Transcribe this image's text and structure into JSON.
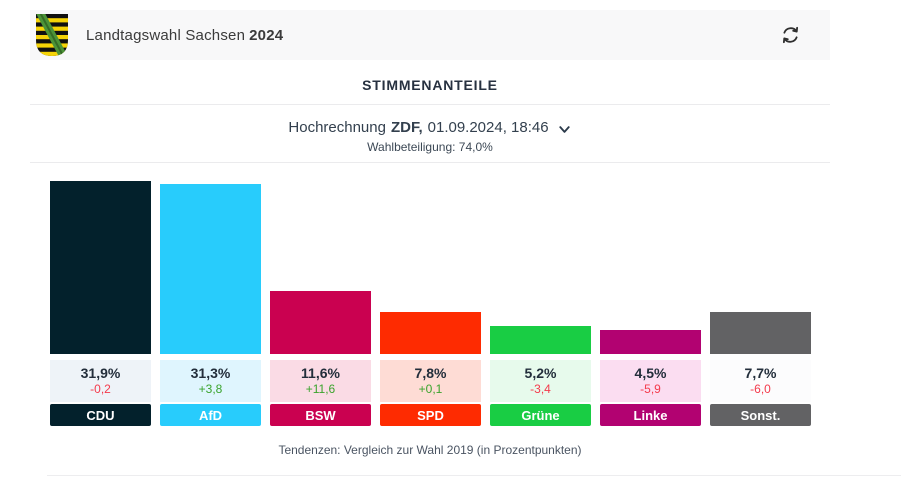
{
  "header": {
    "title_regular": "Landtagswahl Sachsen",
    "title_year": "2024"
  },
  "section": {
    "title": "STIMMENANTEILE"
  },
  "projection": {
    "prefix": "Hochrechnung",
    "source": "ZDF,",
    "datetime": "01.09.2024, 18:46",
    "turnout": "Wahlbeteiligung: 74,0%"
  },
  "chart_data": {
    "type": "bar",
    "title": "STIMMENANTEILE",
    "subtitle": "Hochrechnung ZDF, 01.09.2024, 18:46",
    "categories": [
      "CDU",
      "AfD",
      "BSW",
      "SPD",
      "Grüne",
      "Linke",
      "Sonst."
    ],
    "values": [
      31.9,
      31.3,
      11.6,
      7.8,
      5.2,
      4.5,
      7.7
    ],
    "trend_values": [
      -0.2,
      3.8,
      11.6,
      0.1,
      -3.4,
      -5.9,
      -6.0
    ],
    "ylim": [
      0,
      35
    ],
    "grid": false,
    "legend": "none",
    "footnote": "Tendenzen: Vergleich zur Wahl 2019 (in Prozentpunkten)",
    "parties": [
      {
        "name": "CDU",
        "value": 31.9,
        "value_label": "31,9%",
        "trend": "-0,2",
        "trend_direction": "down",
        "bar_color": "#03212c",
        "box_color": "#eef3f8"
      },
      {
        "name": "AfD",
        "value": 31.3,
        "value_label": "31,3%",
        "trend": "+3,8",
        "trend_direction": "up",
        "bar_color": "#28ccfc",
        "box_color": "#dff5fe"
      },
      {
        "name": "BSW",
        "value": 11.6,
        "value_label": "11,6%",
        "trend": "+11,6",
        "trend_direction": "up",
        "bar_color": "#ca0150",
        "box_color": "#fadbe5"
      },
      {
        "name": "SPD",
        "value": 7.8,
        "value_label": "7,8%",
        "trend": "+0,1",
        "trend_direction": "up",
        "bar_color": "#fe2b01",
        "box_color": "#fedcd5"
      },
      {
        "name": "Grüne",
        "value": 5.2,
        "value_label": "5,2%",
        "trend": "-3,4",
        "trend_direction": "down",
        "bar_color": "#19cd44",
        "box_color": "#e7faec"
      },
      {
        "name": "Linke",
        "value": 4.5,
        "value_label": "4,5%",
        "trend": "-5,9",
        "trend_direction": "down",
        "bar_color": "#b20271",
        "box_color": "#fbddf1"
      },
      {
        "name": "Sonst.",
        "value": 7.7,
        "value_label": "7,7%",
        "trend": "-6,0",
        "trend_direction": "down",
        "bar_color": "#626264",
        "box_color": "#fcfcfd"
      }
    ]
  },
  "footnote": "Tendenzen: Vergleich zur Wahl 2019 (in Prozentpunkten)",
  "icons": {
    "refresh": "refresh-icon",
    "chevron": "chevron-down-icon",
    "crest": "saxony-coat-of-arms-icon"
  },
  "colors": {
    "trend_up": "#3aa32c",
    "trend_down": "#f43a4c",
    "header_bg": "#f8f8f9",
    "divider": "#ebebed",
    "text_dark": "#232e3b"
  }
}
